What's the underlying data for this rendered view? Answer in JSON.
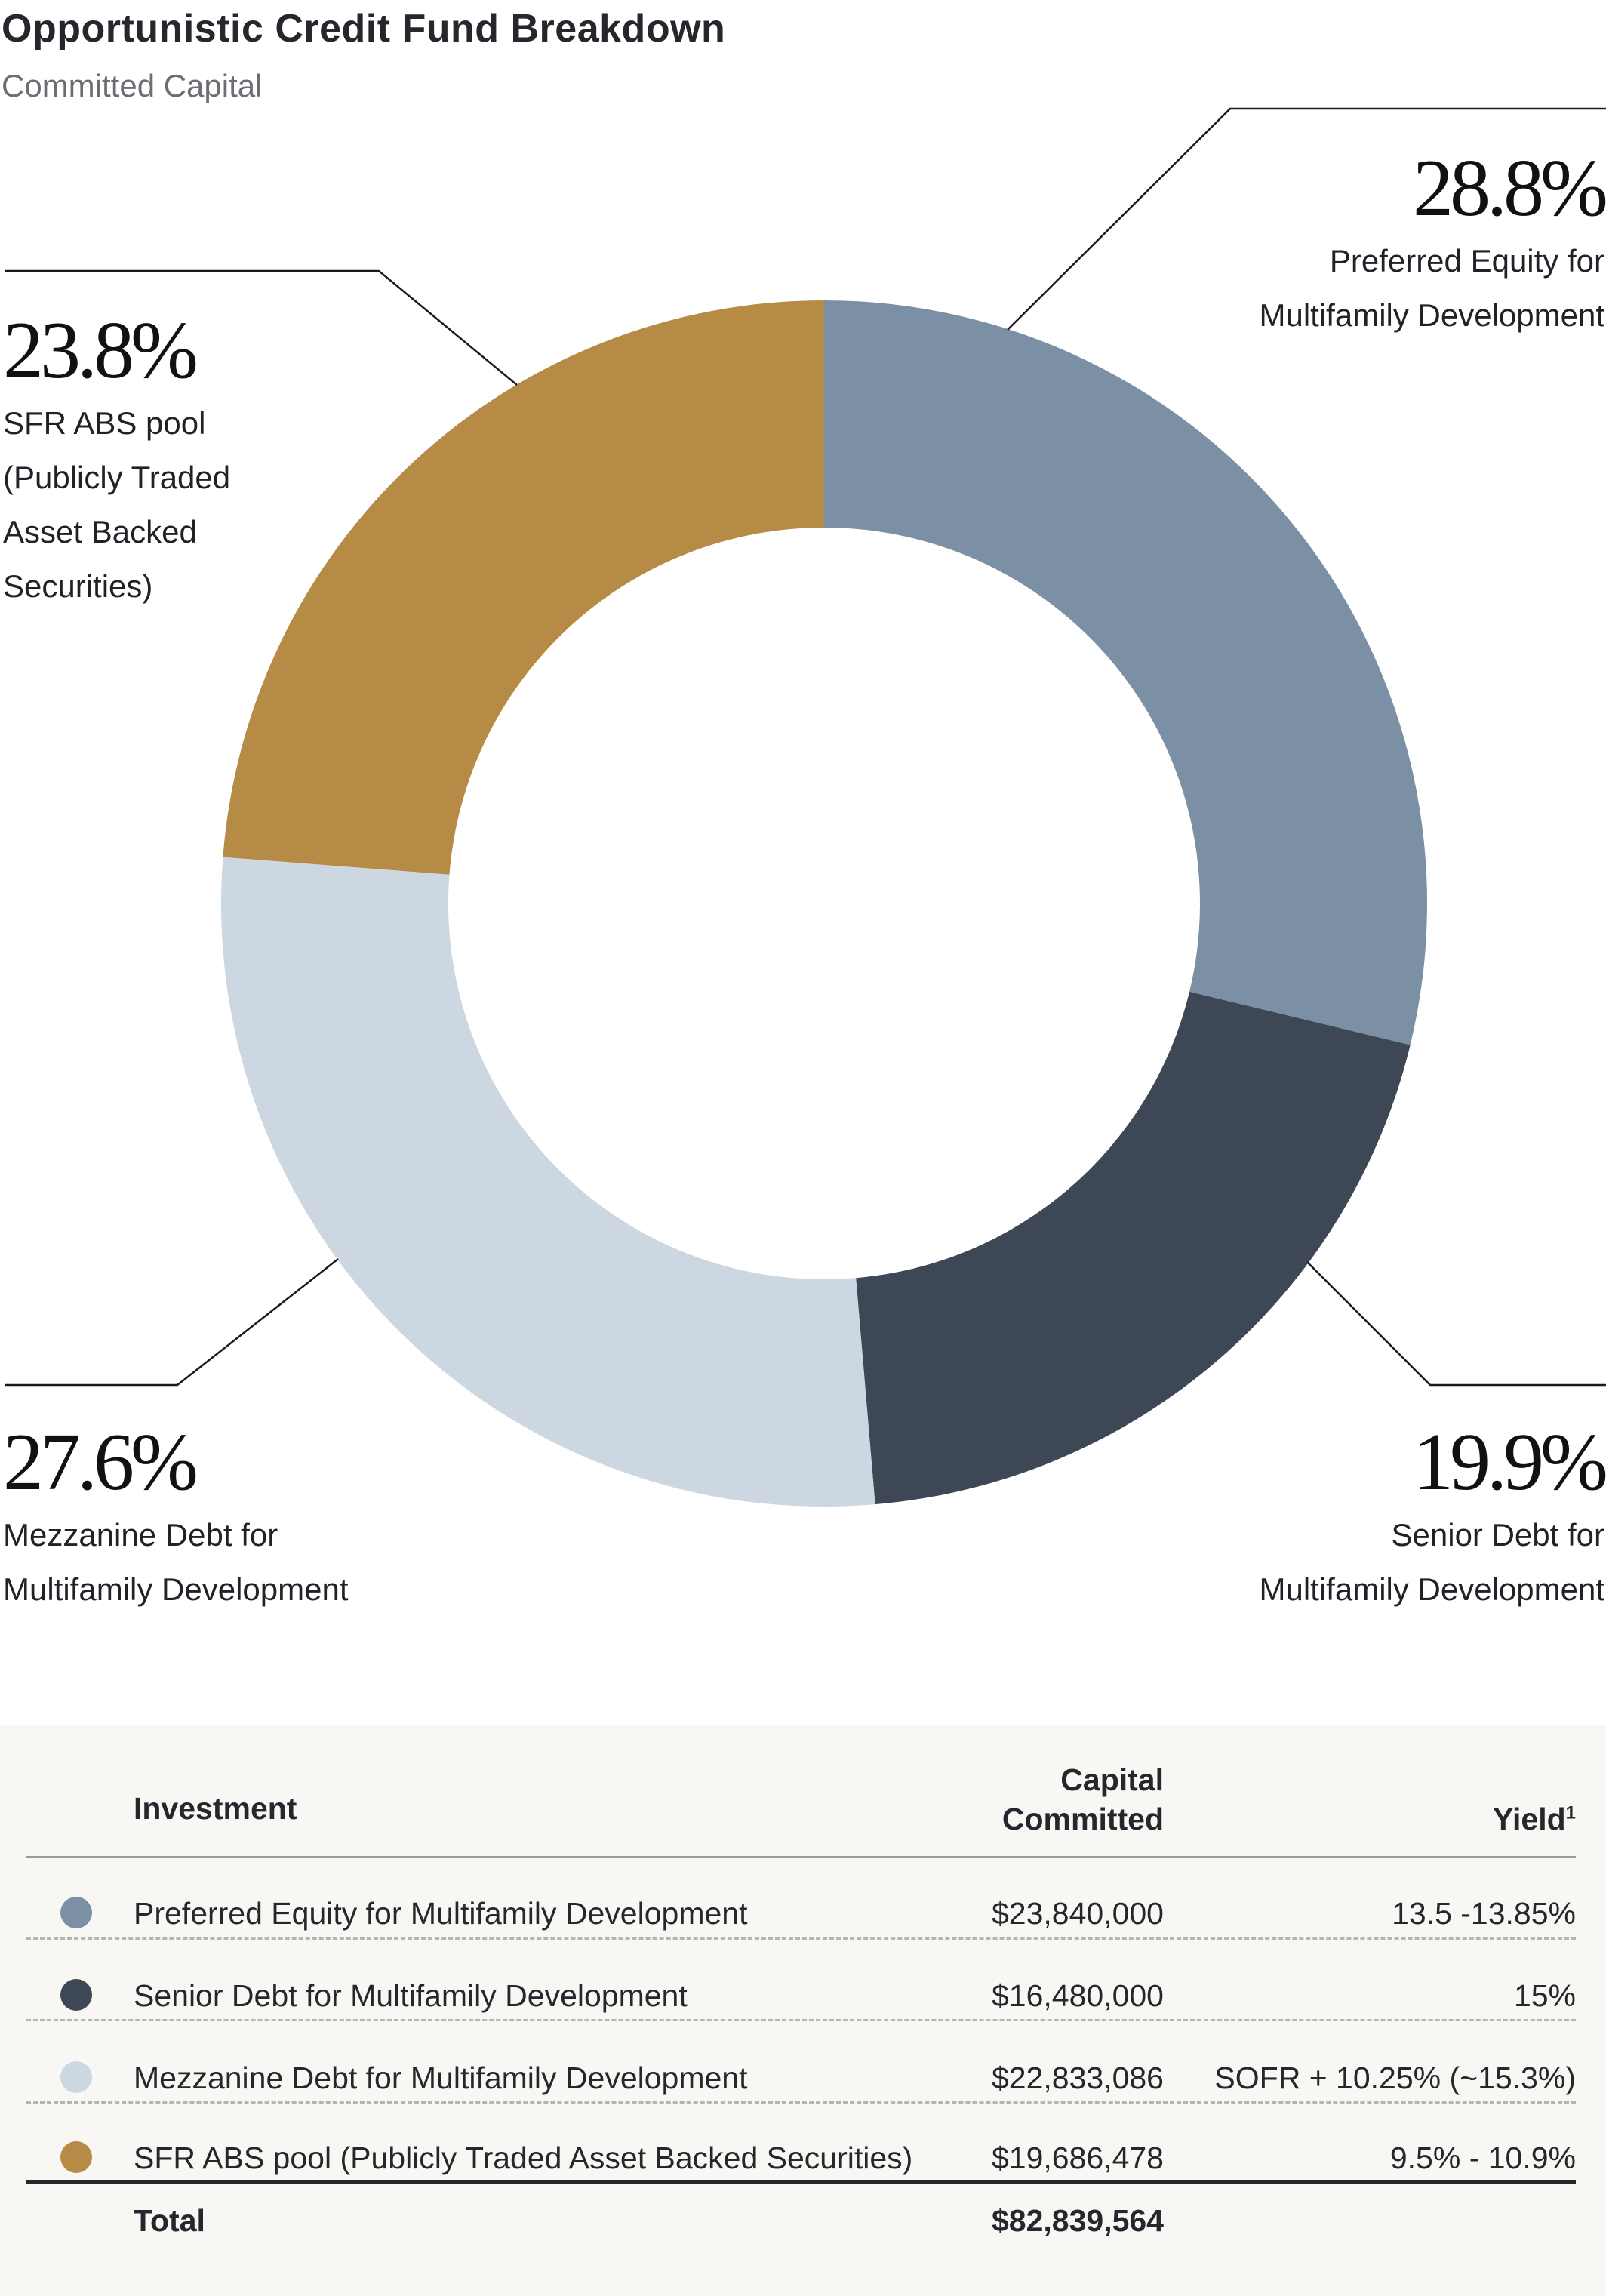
{
  "title": "Opportunistic Credit Fund Breakdown",
  "subtitle": "Committed Capital",
  "chart_data": {
    "type": "pie",
    "variant": "donut",
    "title": "Opportunistic Credit Fund Breakdown",
    "subtitle": "Committed Capital",
    "start_angle": "12 o'clock, clockwise",
    "slices": [
      {
        "name": "Preferred Equity for Multifamily Development",
        "value": 28.8,
        "label": "28.8%",
        "label_lines": [
          "Preferred Equity for",
          "Multifamily Development"
        ],
        "color": "#7b90a4"
      },
      {
        "name": "Senior Debt for Multifamily Development",
        "value": 19.9,
        "label": "19.9%",
        "label_lines": [
          "Senior Debt for",
          "Multifamily Development"
        ],
        "color": "#3d4756"
      },
      {
        "name": "Mezzanine Debt for Multifamily Development",
        "value": 27.6,
        "label": "27.6%",
        "label_lines": [
          "Mezzanine Debt for",
          "Multifamily Development"
        ],
        "color": "#cdd7e1"
      },
      {
        "name": "SFR ABS pool (Publicly Traded Asset Backed Securities)",
        "value": 23.8,
        "label": "23.8%",
        "label_lines": [
          "SFR ABS pool",
          "(Publicly Traded",
          "Asset Backed",
          "Securities)"
        ],
        "color": "#b58b45"
      }
    ]
  },
  "table": {
    "headers": {
      "investment": "Investment",
      "capital_line1": "Capital",
      "capital_line2": "Committed",
      "yield": "Yield",
      "yield_footnote": "1"
    },
    "rows": [
      {
        "investment": "Preferred Equity for Multifamily Development",
        "capital": "$23,840,000",
        "yield": "13.5 -13.85%",
        "color": "#7b90a4"
      },
      {
        "investment": "Senior Debt for Multifamily Development",
        "capital": "$16,480,000",
        "yield": "15%",
        "color": "#3d4756"
      },
      {
        "investment": "Mezzanine Debt for Multifamily Development",
        "capital": "$22,833,086",
        "yield": "SOFR + 10.25% (~15.3%)",
        "color": "#cdd7e1"
      },
      {
        "investment": "SFR ABS pool (Publicly Traded Asset Backed Securities)",
        "capital": "$19,686,478",
        "yield": "9.5% - 10.9%",
        "color": "#b58b45"
      }
    ],
    "total": {
      "label": "Total",
      "capital": "$82,839,564"
    }
  }
}
